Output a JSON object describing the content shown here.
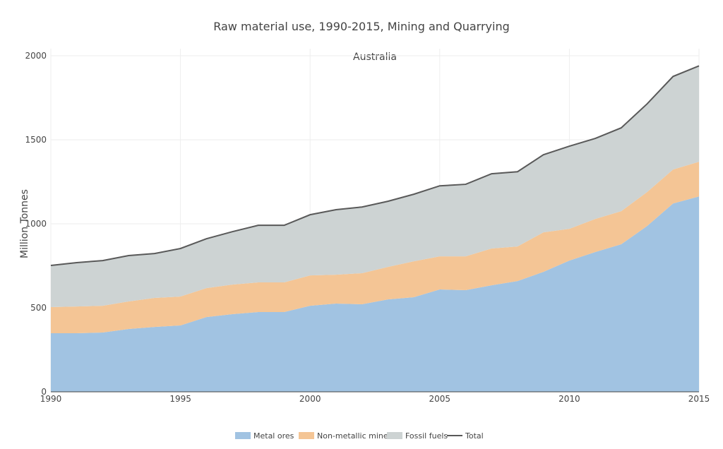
{
  "chart_data": {
    "type": "area",
    "stacked": true,
    "title": "Raw material use, 1990-2015, Mining and Quarrying",
    "subtitle": "Australia",
    "xlabel": "",
    "ylabel": "Million Tonnes",
    "xlim": [
      1990,
      2015
    ],
    "ylim": [
      0,
      2000
    ],
    "x_ticks": [
      1990,
      1995,
      2000,
      2005,
      2010,
      2015
    ],
    "y_ticks": [
      0,
      500,
      1000,
      1500,
      2000
    ],
    "grid": true,
    "legend_position": "bottom",
    "x": [
      1990,
      1991,
      1992,
      1993,
      1994,
      1995,
      1996,
      1997,
      1998,
      1999,
      2000,
      2001,
      2002,
      2003,
      2004,
      2005,
      2006,
      2007,
      2008,
      2009,
      2010,
      2011,
      2012,
      2013,
      2014,
      2015
    ],
    "series": [
      {
        "name": "Metal ores",
        "color": "#a1c3e2",
        "values": [
          349,
          349,
          353,
          374,
          386,
          395,
          445,
          462,
          475,
          475,
          512,
          525,
          521,
          550,
          563,
          609,
          605,
          634,
          659,
          714,
          781,
          832,
          878,
          987,
          1121,
          1163
        ]
      },
      {
        "name": "Non-metallic minerals",
        "color": "#f4c595",
        "values": [
          155,
          159,
          159,
          164,
          173,
          172,
          172,
          176,
          176,
          176,
          181,
          172,
          185,
          193,
          214,
          197,
          201,
          219,
          206,
          235,
          189,
          197,
          197,
          202,
          202,
          206
        ]
      },
      {
        "name": "Fossil fuels",
        "color": "#cdd3d3",
        "values": [
          248,
          261,
          269,
          273,
          264,
          286,
          294,
          315,
          340,
          340,
          361,
          387,
          394,
          391,
          399,
          420,
          429,
          445,
          445,
          462,
          492,
          479,
          496,
          525,
          554,
          571
        ]
      }
    ],
    "total": {
      "name": "Total",
      "color": "#595959",
      "values": [
        752,
        769,
        781,
        811,
        823,
        853,
        911,
        953,
        991,
        991,
        1054,
        1084,
        1100,
        1134,
        1176,
        1226,
        1235,
        1298,
        1310,
        1411,
        1462,
        1508,
        1571,
        1714,
        1877,
        1940
      ]
    }
  }
}
